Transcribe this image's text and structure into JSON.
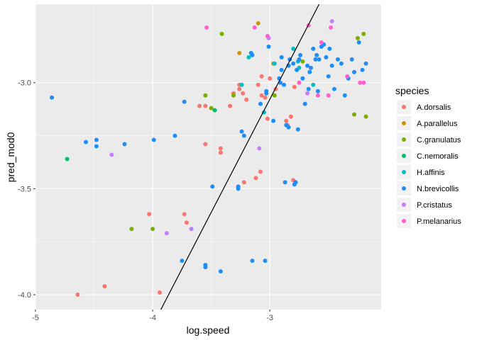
{
  "chart_data": {
    "type": "scatter",
    "title": "",
    "xlabel": "log.speed",
    "ylabel": "pred_mod0",
    "xlim": [
      -5.0,
      -2.05
    ],
    "ylim": [
      -4.07,
      -2.63
    ],
    "x_ticks": [
      -5,
      -4,
      -3
    ],
    "x_tick_labels": [
      "-5",
      "-4",
      "-3"
    ],
    "y_ticks": [
      -4.0,
      -3.5,
      -3.0
    ],
    "y_tick_labels": [
      "-4.0",
      "-3.5",
      "-3.0"
    ],
    "grid": true,
    "legend_title": "species",
    "legend_position": "right",
    "fit_line": {
      "x": [
        -3.93,
        -2.58
      ],
      "y": [
        -4.07,
        -2.63
      ]
    },
    "series": [
      {
        "name": "A.dorsalis",
        "color": "#F8766D",
        "points": [
          [
            -4.64,
            -4.0
          ],
          [
            -4.41,
            -3.96
          ],
          [
            -3.94,
            -3.99
          ],
          [
            -4.03,
            -3.62
          ],
          [
            -3.73,
            -3.62
          ],
          [
            -3.71,
            -3.66
          ],
          [
            -3.6,
            -3.11
          ],
          [
            -3.55,
            -3.29
          ],
          [
            -3.55,
            -3.11
          ],
          [
            -3.42,
            -3.31
          ],
          [
            -3.42,
            -3.33
          ],
          [
            -3.34,
            -3.11
          ],
          [
            -3.31,
            -3.05
          ],
          [
            -3.26,
            -3.01
          ],
          [
            -3.26,
            -3.03
          ],
          [
            -3.23,
            -3.05
          ],
          [
            -3.22,
            -3.47
          ],
          [
            -3.2,
            -3.08
          ],
          [
            -3.12,
            -3.45
          ],
          [
            -3.08,
            -3.42
          ],
          [
            -3.07,
            -3.06
          ],
          [
            -3.04,
            -3.07
          ],
          [
            -3.02,
            -3.17
          ],
          [
            -3.0,
            -2.98
          ],
          [
            -2.95,
            -3.03
          ],
          [
            -2.86,
            -3.18
          ],
          [
            -2.85,
            -3.2
          ],
          [
            -2.82,
            -3.16
          ],
          [
            -2.8,
            -3.46
          ],
          [
            -2.79,
            -3.02
          ],
          [
            -3.1,
            -3.01
          ],
          [
            -3.07,
            -2.97
          ]
        ]
      },
      {
        "name": "A.parallelus",
        "color": "#CD9600",
        "points": [
          [
            -3.26,
            -2.86
          ],
          [
            -3.1,
            -2.72
          ],
          [
            -2.97,
            -2.91
          ]
        ]
      },
      {
        "name": "C.granulatus",
        "color": "#7CAE00",
        "points": [
          [
            -4.18,
            -3.69
          ],
          [
            -4.0,
            -3.69
          ],
          [
            -3.55,
            -3.06
          ],
          [
            -3.5,
            -3.12
          ],
          [
            -3.41,
            -2.77
          ],
          [
            -3.31,
            -3.06
          ],
          [
            -2.96,
            -3.06
          ],
          [
            -2.72,
            -2.9
          ],
          [
            -2.28,
            -3.15
          ],
          [
            -2.25,
            -2.79
          ],
          [
            -2.2,
            -2.77
          ],
          [
            -2.18,
            -3.16
          ]
        ]
      },
      {
        "name": "C.nemoralis",
        "color": "#00BE67",
        "points": [
          [
            -4.73,
            -3.36
          ],
          [
            -3.47,
            -3.13
          ]
        ]
      },
      {
        "name": "H.affinis",
        "color": "#00BFC4",
        "points": [
          [
            -3.24,
            -3.01
          ],
          [
            -3.18,
            -2.88
          ],
          [
            -3.05,
            -3.14
          ],
          [
            -2.96,
            -2.91
          ],
          [
            -2.8,
            -2.84
          ],
          [
            -2.76,
            -2.9
          ],
          [
            -2.75,
            -2.93
          ],
          [
            -2.63,
            -3.01
          ]
        ]
      },
      {
        "name": "N.brevicollis",
        "color": "#1C8EF8",
        "points": [
          [
            -4.86,
            -3.07
          ],
          [
            -4.57,
            -3.28
          ],
          [
            -4.48,
            -3.27
          ],
          [
            -4.48,
            -3.3
          ],
          [
            -4.24,
            -3.29
          ],
          [
            -3.99,
            -3.27
          ],
          [
            -3.81,
            -3.25
          ],
          [
            -3.75,
            -3.84
          ],
          [
            -3.73,
            -3.09
          ],
          [
            -3.55,
            -3.86
          ],
          [
            -3.55,
            -3.87
          ],
          [
            -3.49,
            -3.49
          ],
          [
            -3.42,
            -3.89
          ],
          [
            -3.27,
            -3.49
          ],
          [
            -3.27,
            -3.5
          ],
          [
            -3.24,
            -3.23
          ],
          [
            -3.22,
            -3.25
          ],
          [
            -3.16,
            -2.86
          ],
          [
            -3.15,
            -2.87
          ],
          [
            -3.15,
            -3.84
          ],
          [
            -3.08,
            -3.1
          ],
          [
            -3.04,
            -3.84
          ],
          [
            -3.03,
            -3.05
          ],
          [
            -3.03,
            -3.04
          ],
          [
            -3.01,
            -2.83
          ],
          [
            -2.97,
            -3.18
          ],
          [
            -2.92,
            -2.98
          ],
          [
            -2.91,
            -3.0
          ],
          [
            -2.9,
            -2.94
          ],
          [
            -2.9,
            -2.88
          ],
          [
            -2.88,
            -3.01
          ],
          [
            -2.87,
            -3.47
          ],
          [
            -2.86,
            -3.2
          ],
          [
            -2.84,
            -2.92
          ],
          [
            -2.84,
            -3.21
          ],
          [
            -2.83,
            -2.89
          ],
          [
            -2.8,
            -2.91
          ],
          [
            -2.79,
            -3.48
          ],
          [
            -2.78,
            -3.47
          ],
          [
            -2.77,
            -2.94
          ],
          [
            -2.76,
            -3.22
          ],
          [
            -2.75,
            -2.89
          ],
          [
            -2.74,
            -2.87
          ],
          [
            -2.72,
            -2.98
          ],
          [
            -2.7,
            -3.1
          ],
          [
            -2.68,
            -2.92
          ],
          [
            -2.67,
            -3.03
          ],
          [
            -2.66,
            -2.95
          ],
          [
            -2.65,
            -2.93
          ],
          [
            -2.63,
            -2.84
          ],
          [
            -2.61,
            -2.89
          ],
          [
            -2.6,
            -2.87
          ],
          [
            -2.59,
            -3.04
          ],
          [
            -2.58,
            -2.89
          ],
          [
            -2.56,
            -2.83
          ],
          [
            -2.54,
            -2.82
          ],
          [
            -2.52,
            -2.88
          ],
          [
            -2.5,
            -2.97
          ],
          [
            -2.49,
            -2.84
          ],
          [
            -2.47,
            -2.92
          ],
          [
            -2.45,
            -3.03
          ],
          [
            -2.42,
            -2.89
          ],
          [
            -2.39,
            -2.91
          ],
          [
            -2.36,
            -3.06
          ],
          [
            -2.33,
            -2.98
          ],
          [
            -2.3,
            -2.89
          ],
          [
            -2.28,
            -2.95
          ],
          [
            -2.24,
            -2.81
          ],
          [
            -2.21,
            -2.94
          ],
          [
            -2.18,
            -2.91
          ]
        ]
      },
      {
        "name": "P.cristatus",
        "color": "#C77CFF",
        "points": [
          [
            -4.35,
            -3.34
          ],
          [
            -3.88,
            -3.71
          ],
          [
            -3.67,
            -3.69
          ],
          [
            -3.09,
            -3.31
          ],
          [
            -3.01,
            -2.79
          ],
          [
            -2.68,
            -3.05
          ],
          [
            -2.47,
            -2.71
          ]
        ]
      },
      {
        "name": "P.melanarius",
        "color": "#FF61CC",
        "points": [
          [
            -3.54,
            -2.74
          ],
          [
            -3.13,
            -2.74
          ],
          [
            -3.02,
            -2.78
          ],
          [
            -2.75,
            -3.0
          ],
          [
            -2.67,
            -2.73
          ],
          [
            -2.59,
            -3.06
          ],
          [
            -2.56,
            -2.81
          ],
          [
            -2.5,
            -3.06
          ],
          [
            -2.48,
            -2.74
          ],
          [
            -2.34,
            -2.97
          ],
          [
            -2.23,
            -3.0
          ],
          [
            -2.2,
            -3.0
          ]
        ]
      }
    ]
  }
}
